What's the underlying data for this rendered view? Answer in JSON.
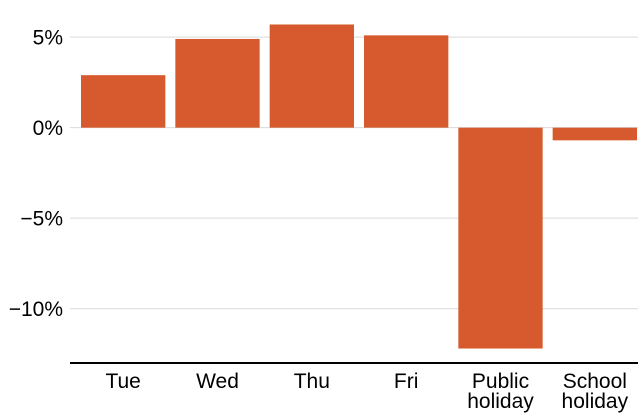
{
  "chart_data": {
    "type": "bar",
    "categories": [
      [
        "Tue"
      ],
      [
        "Wed"
      ],
      [
        "Thu"
      ],
      [
        "Fri"
      ],
      [
        "Public",
        "holiday"
      ],
      [
        "School",
        "holiday"
      ]
    ],
    "values": [
      2.9,
      4.9,
      5.7,
      5.1,
      -12.2,
      -0.7
    ],
    "y_ticks": [
      5,
      0,
      -5,
      -10
    ],
    "y_tick_labels": [
      "5%",
      "0%",
      "−5%",
      "−10%"
    ],
    "ylim": [
      -13.0,
      6.5
    ],
    "grid": true,
    "bar_color": "#d65a2e",
    "title": "",
    "xlabel": "",
    "ylabel": ""
  }
}
